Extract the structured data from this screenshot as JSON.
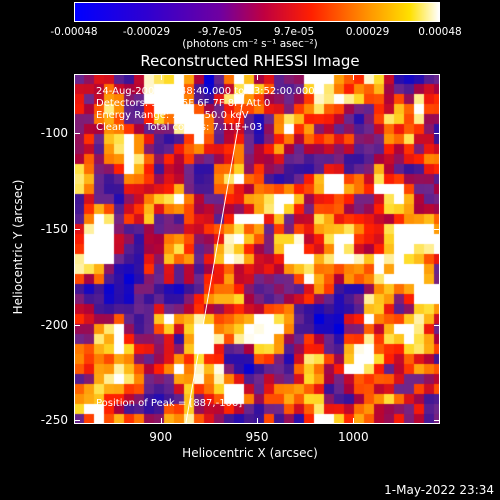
{
  "colorbar": {
    "tick_labels": [
      "-0.00048",
      "-0.00029",
      "-9.7e-05",
      "9.7e-05",
      "0.00029",
      "0.00048"
    ],
    "tick_values": [
      -0.00048,
      -0.00029,
      -9.7e-05,
      9.7e-05,
      0.00029,
      0.00048
    ],
    "range": [
      -0.00048,
      0.00048
    ],
    "units_label": "(photons cm⁻² s⁻¹ asec⁻²)",
    "colors": [
      "#0000ff",
      "#2a00e0",
      "#6a00b0",
      "#b00060",
      "#ff0000",
      "#ff6a00",
      "#ffc000",
      "#ffffff"
    ]
  },
  "chart_data": {
    "type": "heatmap",
    "title": "Reconstructed RHESSI Image",
    "xlabel": "Heliocentric X (arcsec)",
    "ylabel": "Heliocentric Y (arcsec)",
    "xlim": [
      855,
      1045
    ],
    "ylim": [
      -252,
      -69
    ],
    "xticks": [
      900,
      950,
      1000
    ],
    "yticks": [
      -100,
      -150,
      -200,
      -250
    ],
    "limb_line": {
      "x": [
        913,
        944
      ],
      "y": [
        -252,
        -75
      ]
    },
    "annotations": {
      "time_range": "24-Aug-2005 23:48:40.000 to 23:52:00.000",
      "detectors": "Detectors: 3F 4F 5F 6F 7F 8F, Att 0",
      "energy_range": "Energy Range: 25.0 - 50.0 keV",
      "method": "Clean",
      "total_counts": "Total counts: 7.11E+03",
      "peak": "Position of Peak = [887,-106]"
    }
  },
  "timestamp": "1-May-2022 23:34"
}
